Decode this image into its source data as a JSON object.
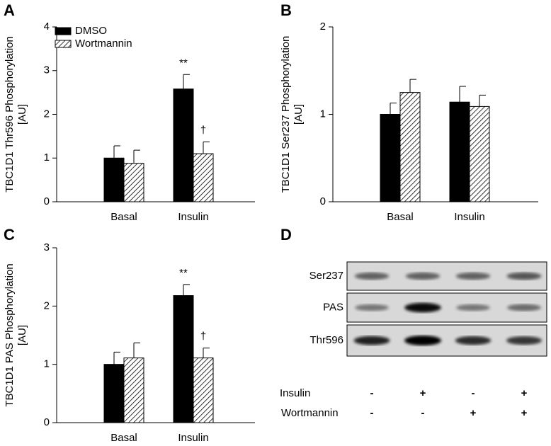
{
  "chart_data": [
    {
      "type": "bar",
      "label": "A",
      "ylabel": [
        "TBC1D1 Thr596 Phosphorylation",
        "[AU]"
      ],
      "categories": [
        "Basal",
        "Insulin"
      ],
      "series": [
        {
          "name": "DMSO",
          "color": "#000000",
          "values": [
            1.0,
            2.58
          ],
          "errors": [
            0.28,
            0.33
          ],
          "annotations": [
            null,
            "**"
          ]
        },
        {
          "name": "Wortmannin",
          "color": "#ffffff",
          "hatch": true,
          "values": [
            0.88,
            1.1
          ],
          "errors": [
            0.3,
            0.27
          ],
          "annotations": [
            null,
            "†"
          ]
        }
      ],
      "ylim": [
        0,
        4
      ],
      "yticks": [
        0,
        1,
        2,
        3,
        4
      ],
      "legend": "top-left"
    },
    {
      "type": "bar",
      "label": "B",
      "ylabel": [
        "TBC1D1 Ser237 Phosphorylation",
        "[AU]"
      ],
      "categories": [
        "Basal",
        "Insulin"
      ],
      "series": [
        {
          "color": "#000000",
          "values": [
            1.0,
            1.14
          ],
          "errors": [
            0.13,
            0.18
          ]
        },
        {
          "color": "#ffffff",
          "hatch": true,
          "values": [
            1.25,
            1.09
          ],
          "errors": [
            0.15,
            0.13
          ]
        }
      ],
      "ylim": [
        0,
        2
      ],
      "yticks": [
        0,
        1,
        2
      ]
    },
    {
      "type": "bar",
      "label": "C",
      "ylabel": [
        "TBC1D1 PAS Phosphorylation",
        "[AU]"
      ],
      "categories": [
        "Basal",
        "Insulin"
      ],
      "series": [
        {
          "color": "#000000",
          "values": [
            1.0,
            2.18
          ],
          "errors": [
            0.21,
            0.19
          ],
          "annotations": [
            null,
            "**"
          ]
        },
        {
          "color": "#ffffff",
          "hatch": true,
          "values": [
            1.11,
            1.11
          ],
          "errors": [
            0.26,
            0.17
          ],
          "annotations": [
            null,
            "†"
          ]
        }
      ],
      "ylim": [
        0,
        3
      ],
      "yticks": [
        0,
        1,
        2,
        3
      ]
    }
  ],
  "blot": {
    "label": "D",
    "rows": [
      "Ser237",
      "PAS",
      "Thr596"
    ],
    "conditions": [
      {
        "name": "Insulin",
        "signs": [
          "-",
          "+",
          "-",
          "+"
        ]
      },
      {
        "name": "Wortmannin",
        "signs": [
          "-",
          "-",
          "+",
          "+"
        ]
      }
    ]
  }
}
